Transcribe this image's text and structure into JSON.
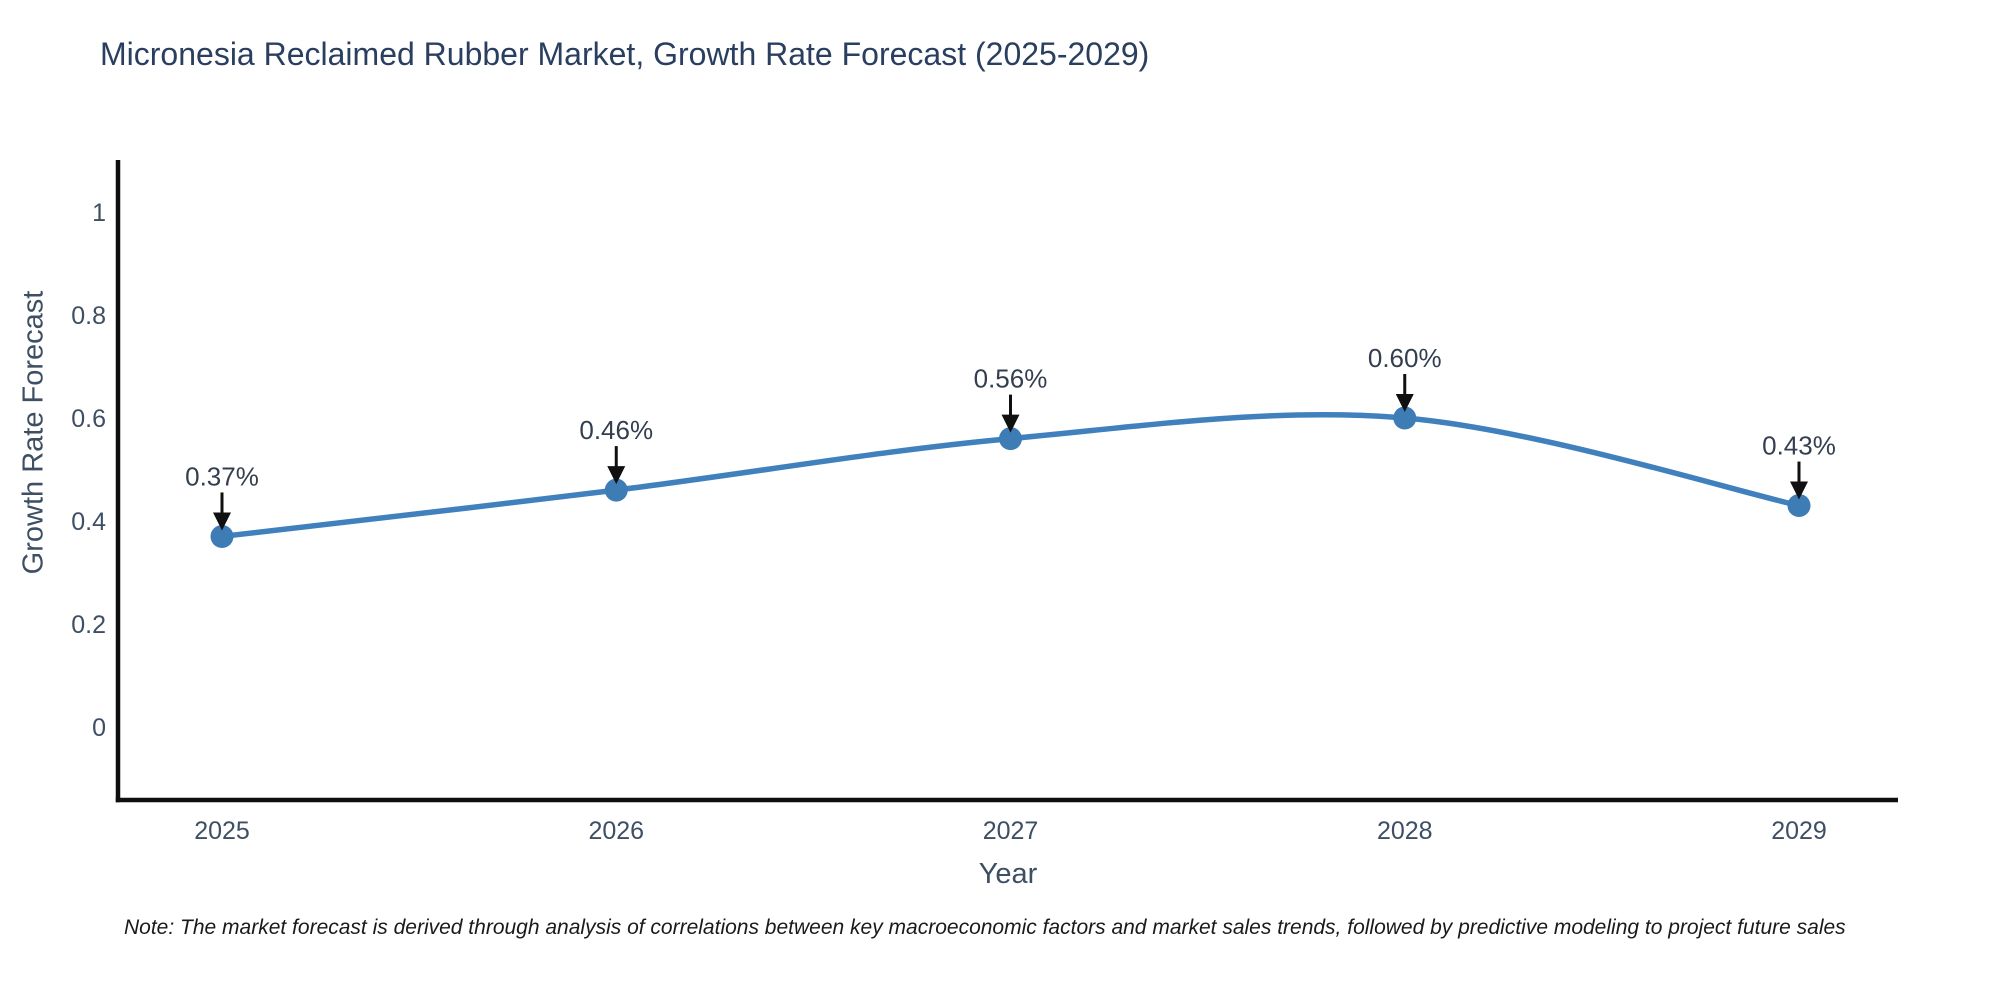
{
  "page": {
    "note": "Note: The market forecast is derived through analysis of correlations between key macroeconomic factors and market sales trends, followed by predictive modeling to project future sales"
  },
  "chart_data": {
    "type": "line",
    "title": "Micronesia Reclaimed Rubber Market, Growth Rate Forecast (2025-2029)",
    "xlabel": "Year",
    "ylabel": "Growth Rate Forecast",
    "x": [
      2025,
      2026,
      2027,
      2028,
      2029
    ],
    "series": [
      {
        "name": "Growth Rate Forecast",
        "values": [
          0.37,
          0.46,
          0.56,
          0.6,
          0.43
        ]
      }
    ],
    "point_labels": [
      "0.37%",
      "0.46%",
      "0.56%",
      "0.60%",
      "0.43%"
    ],
    "y_ticks": [
      0,
      0.2,
      0.4,
      0.6,
      0.8,
      1
    ],
    "ylim": [
      -0.14,
      1.11
    ],
    "line_shape": "spline",
    "grid": false,
    "legend": "none",
    "annotation_style": "down-arrow",
    "colors": {
      "line": "#4081bd",
      "marker": "#3e7cb5",
      "axis": "#0f0f0f",
      "tick_text": "#3e4e63",
      "title_text": "#2a3f5f",
      "annotation_text": "#333f4f",
      "arrow": "#101010",
      "background": "#ffffff"
    }
  }
}
